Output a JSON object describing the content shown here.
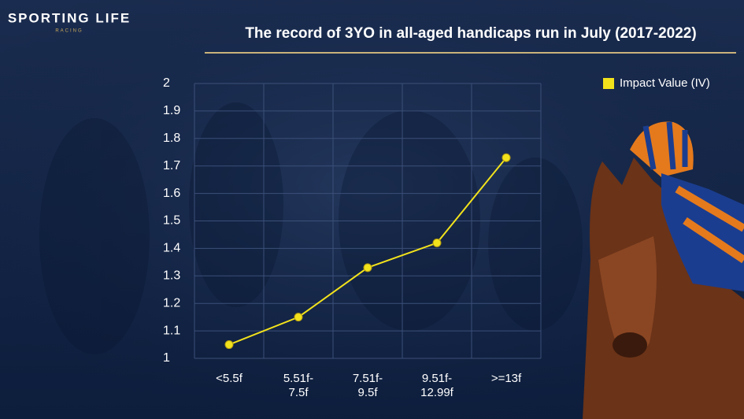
{
  "header": {
    "logo": "SPORTING LIFE",
    "logo_sub": "RACING"
  },
  "chart_data": {
    "type": "line",
    "title": "The record of 3YO in all-aged handicaps run in July (2017-2022)",
    "categories": [
      "<5.5f",
      "5.51f-7.5f",
      "7.51f-9.5f",
      "9.51f-12.99f",
      ">=13f"
    ],
    "series": [
      {
        "name": "Impact Value (IV)",
        "color": "#f2e21c",
        "values": [
          1.05,
          1.15,
          1.33,
          1.42,
          1.73
        ]
      }
    ],
    "ylim": [
      1,
      2
    ],
    "yticks": [
      1,
      1.1,
      1.2,
      1.3,
      1.4,
      1.5,
      1.6,
      1.7,
      1.8,
      1.9,
      2
    ],
    "grid": true,
    "legend": "top-right"
  }
}
